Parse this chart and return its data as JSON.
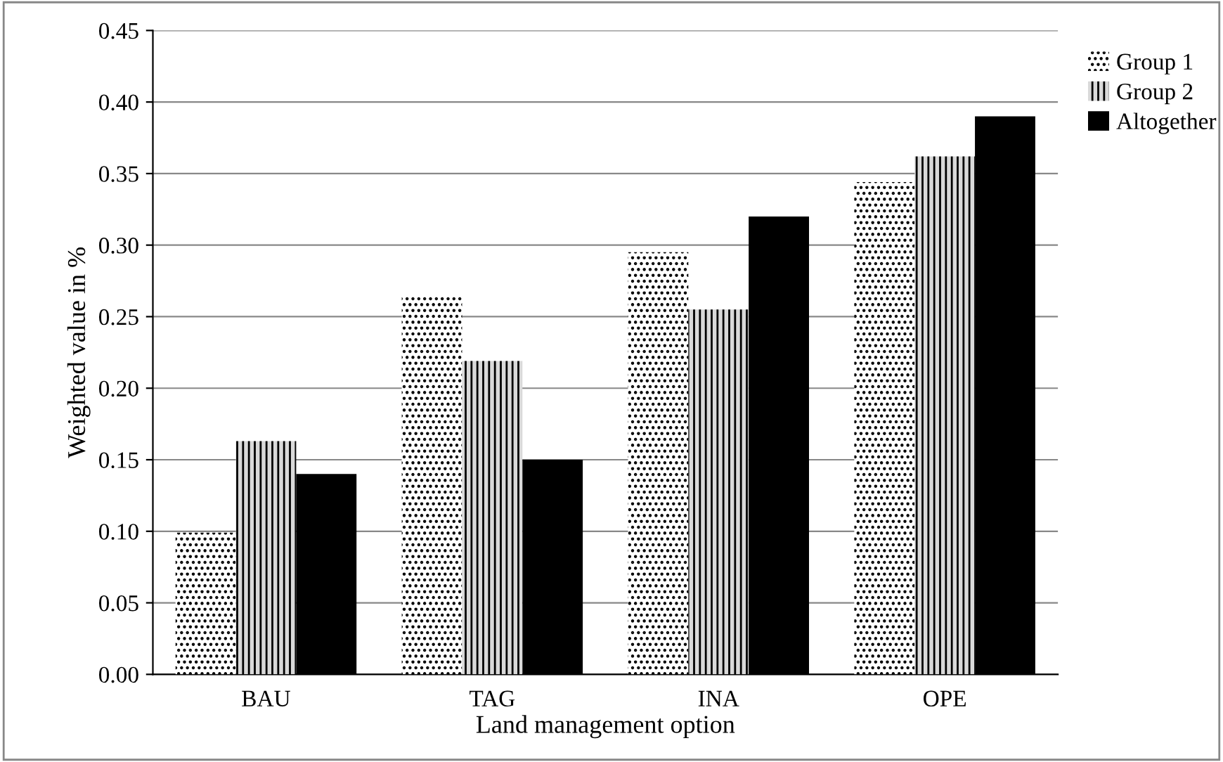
{
  "chart_data": {
    "type": "bar",
    "xlabel": "Land management option",
    "ylabel": "Weighted value in %",
    "categories": [
      "BAU",
      "TAG",
      "INA",
      "OPE"
    ],
    "series": [
      {
        "name": "Group 1",
        "color": "#ffffff",
        "values": [
          0.099,
          0.264,
          0.295,
          0.344
        ]
      },
      {
        "name": "Group 2",
        "color": "#d9d9d9",
        "values": [
          0.163,
          0.219,
          0.255,
          0.362
        ]
      },
      {
        "name": "Altogether",
        "color": "#000000",
        "values": [
          0.14,
          0.15,
          0.32,
          0.39
        ]
      }
    ],
    "ylim": [
      0,
      0.45
    ],
    "yticks": [
      {
        "value": 0,
        "label": "0.00"
      },
      {
        "value": 0.05,
        "label": "0.05"
      },
      {
        "value": 0.1,
        "label": "0.10"
      },
      {
        "value": 0.15,
        "label": "0.15"
      },
      {
        "value": 0.2,
        "label": "0.20"
      },
      {
        "value": 0.25,
        "label": "0.25"
      },
      {
        "value": 0.3,
        "label": "0.30"
      },
      {
        "value": 0.35,
        "label": "0.35"
      },
      {
        "value": 0.4,
        "label": "0.40"
      },
      {
        "value": 0.45,
        "label": "0.45"
      }
    ],
    "grid": "y",
    "legend": "right"
  }
}
